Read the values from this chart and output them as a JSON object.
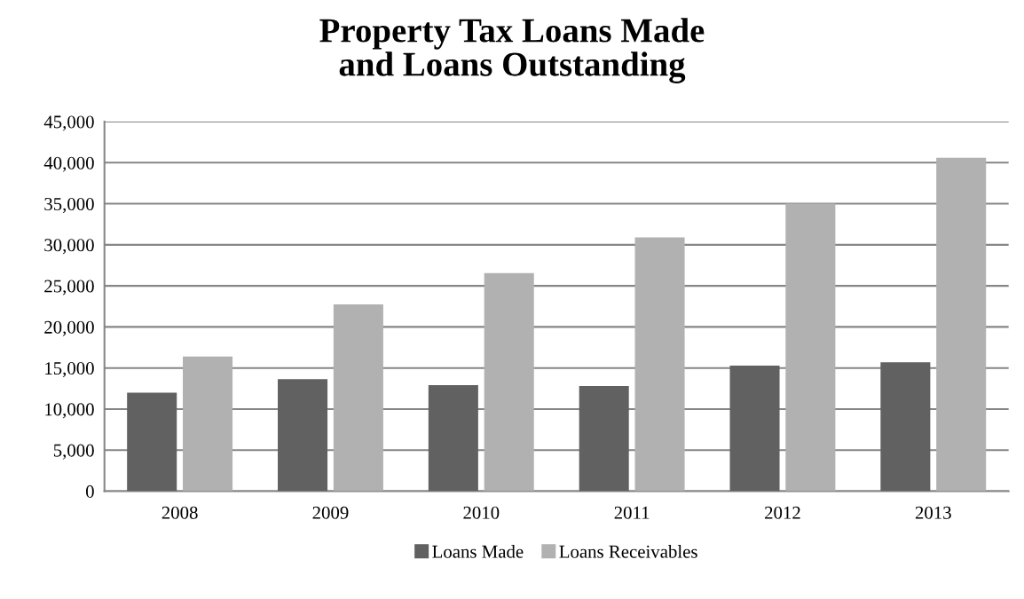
{
  "chart_data": {
    "type": "bar",
    "title": "Property Tax Loans Made\nand Loans Outstanding",
    "categories": [
      "2008",
      "2009",
      "2010",
      "2011",
      "2012",
      "2013"
    ],
    "series": [
      {
        "name": "Loans Made",
        "color": "#616161",
        "values": [
          12000,
          13650,
          12900,
          12800,
          15300,
          15700
        ]
      },
      {
        "name": "Loans Receivables",
        "color": "#b1b1b1",
        "values": [
          16400,
          22750,
          26550,
          30900,
          35000,
          40600
        ]
      }
    ],
    "ylim": [
      0,
      45000
    ],
    "yticks": [
      {
        "value": 0,
        "label": "0"
      },
      {
        "value": 5000,
        "label": "5,000"
      },
      {
        "value": 10000,
        "label": "10,000"
      },
      {
        "value": 15000,
        "label": "15,000"
      },
      {
        "value": 20000,
        "label": "20,000"
      },
      {
        "value": 25000,
        "label": "25,000"
      },
      {
        "value": 30000,
        "label": "30,000"
      },
      {
        "value": 35000,
        "label": "35,000"
      },
      {
        "value": 40000,
        "label": "40,000"
      },
      {
        "value": 45000,
        "label": "45,000"
      }
    ],
    "grid": "y",
    "legend": "bottom"
  }
}
